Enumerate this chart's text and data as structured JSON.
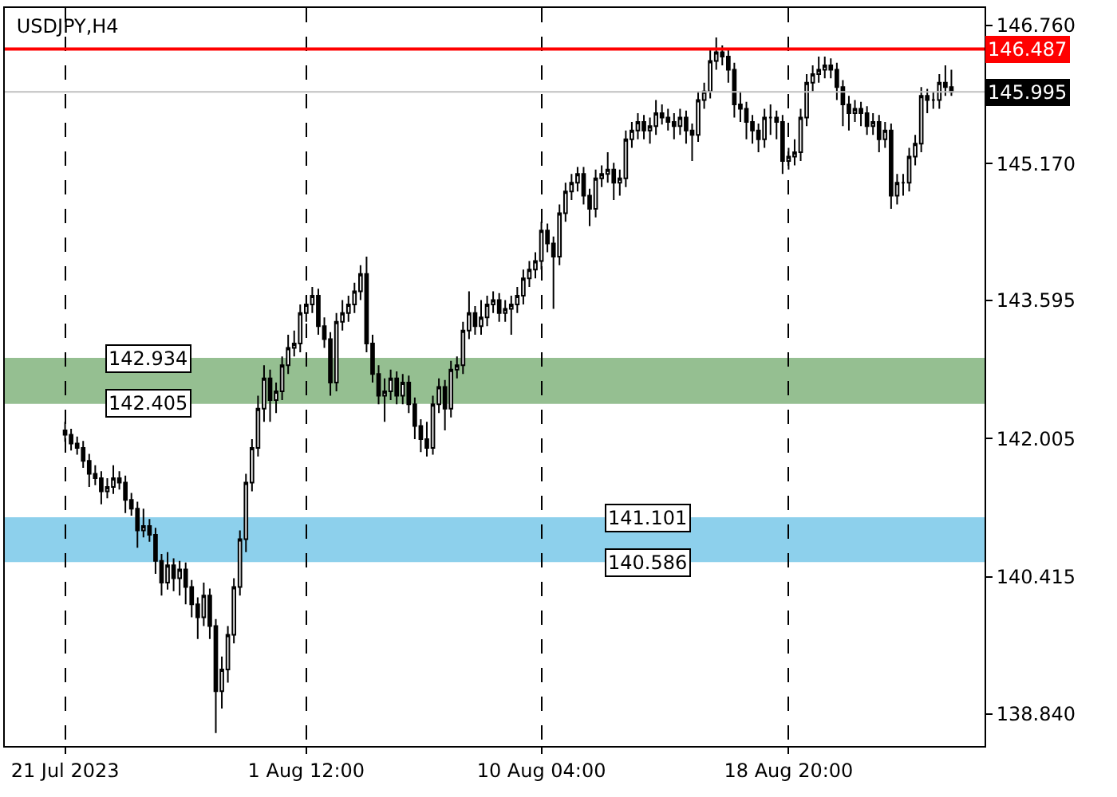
{
  "chart_data": {
    "type": "candlestick",
    "title": "USDJPY,H4",
    "categories": [
      "21 Jul 2023",
      null,
      null,
      null,
      null,
      null,
      null,
      null,
      null,
      null,
      null,
      null,
      null,
      null,
      null,
      null,
      null,
      null,
      null,
      null,
      null,
      null,
      null,
      null,
      null,
      null,
      null,
      null,
      null,
      null,
      null,
      null,
      null,
      null,
      null,
      null,
      null,
      null,
      null,
      null,
      "1 Aug 12:00",
      null,
      null,
      null,
      null,
      null,
      null,
      null,
      null,
      null,
      null,
      null,
      null,
      null,
      null,
      null,
      null,
      null,
      null,
      null,
      null,
      null,
      null,
      null,
      null,
      null,
      null,
      null,
      null,
      null,
      null,
      null,
      null,
      null,
      null,
      null,
      null,
      null,
      null,
      "10 Aug 04:00",
      null,
      null,
      null,
      null,
      null,
      null,
      null,
      null,
      null,
      null,
      null,
      null,
      null,
      null,
      null,
      null,
      null,
      null,
      null,
      null,
      null,
      null,
      null,
      null,
      null,
      null,
      null,
      null,
      null,
      null,
      null,
      null,
      null,
      null,
      null,
      null,
      null,
      null,
      null,
      null,
      "18 Aug 20:00",
      null,
      null,
      null,
      null,
      null,
      null,
      null,
      null,
      null,
      null,
      null,
      null,
      null,
      null,
      null,
      null,
      null,
      null,
      null,
      null,
      null,
      null,
      null,
      null,
      null,
      null,
      null
    ],
    "ohlc": [
      [
        142.1,
        142.2,
        141.97,
        142.05
      ],
      [
        142.05,
        142.12,
        141.87,
        141.95
      ],
      [
        141.95,
        142.03,
        141.82,
        141.9
      ],
      [
        141.9,
        141.98,
        141.67,
        141.75
      ],
      [
        141.75,
        141.83,
        141.45,
        141.6
      ],
      [
        141.6,
        141.7,
        141.47,
        141.55
      ],
      [
        141.55,
        141.63,
        141.25,
        141.4
      ],
      [
        141.4,
        141.55,
        141.32,
        141.45
      ],
      [
        141.45,
        141.7,
        141.37,
        141.55
      ],
      [
        141.55,
        141.63,
        141.42,
        141.5
      ],
      [
        141.5,
        141.58,
        141.15,
        141.3
      ],
      [
        141.3,
        141.38,
        141.12,
        141.2
      ],
      [
        141.2,
        141.28,
        140.75,
        140.95
      ],
      [
        140.95,
        141.2,
        140.87,
        141.0
      ],
      [
        141.0,
        141.08,
        140.82,
        140.9
      ],
      [
        140.9,
        140.98,
        140.45,
        140.6
      ],
      [
        140.6,
        140.68,
        140.2,
        140.35
      ],
      [
        140.35,
        140.7,
        140.27,
        140.55
      ],
      [
        140.55,
        140.63,
        140.25,
        140.4
      ],
      [
        140.4,
        140.6,
        140.2,
        140.5
      ],
      [
        140.5,
        140.58,
        140.1,
        140.3
      ],
      [
        140.3,
        140.38,
        139.95,
        140.1
      ],
      [
        140.1,
        140.18,
        139.7,
        139.95
      ],
      [
        139.95,
        140.35,
        139.85,
        140.2
      ],
      [
        140.2,
        140.28,
        139.7,
        139.85
      ],
      [
        139.85,
        139.93,
        138.62,
        139.1
      ],
      [
        139.1,
        139.5,
        138.9,
        139.35
      ],
      [
        139.35,
        139.85,
        139.2,
        139.75
      ],
      [
        139.75,
        140.4,
        139.65,
        140.3
      ],
      [
        140.3,
        140.95,
        140.2,
        140.85
      ],
      [
        140.85,
        141.6,
        140.7,
        141.5
      ],
      [
        141.5,
        142.0,
        141.4,
        141.9
      ],
      [
        141.9,
        142.5,
        141.8,
        142.35
      ],
      [
        142.35,
        142.85,
        142.2,
        142.7
      ],
      [
        142.7,
        142.8,
        142.2,
        142.45
      ],
      [
        142.45,
        142.65,
        142.3,
        142.55
      ],
      [
        142.55,
        142.95,
        142.45,
        142.85
      ],
      [
        142.85,
        143.2,
        142.75,
        143.05
      ],
      [
        143.05,
        143.25,
        142.95,
        143.1
      ],
      [
        143.1,
        143.55,
        143.0,
        143.45
      ],
      [
        143.45,
        143.65,
        143.35,
        143.55
      ],
      [
        143.55,
        143.75,
        143.45,
        143.65
      ],
      [
        143.65,
        143.73,
        143.2,
        143.3
      ],
      [
        143.3,
        143.4,
        143.05,
        143.15
      ],
      [
        143.15,
        143.23,
        142.5,
        142.65
      ],
      [
        142.65,
        143.45,
        142.55,
        143.35
      ],
      [
        143.35,
        143.6,
        143.25,
        143.45
      ],
      [
        143.45,
        143.65,
        143.35,
        143.55
      ],
      [
        143.55,
        143.8,
        143.45,
        143.7
      ],
      [
        143.7,
        144.0,
        143.6,
        143.9
      ],
      [
        143.9,
        144.1,
        143.0,
        143.1
      ],
      [
        143.1,
        143.2,
        142.65,
        142.75
      ],
      [
        142.75,
        142.85,
        142.4,
        142.5
      ],
      [
        142.5,
        142.7,
        142.2,
        142.55
      ],
      [
        142.55,
        142.8,
        142.45,
        142.7
      ],
      [
        142.7,
        142.78,
        142.4,
        142.5
      ],
      [
        142.5,
        142.75,
        142.4,
        142.65
      ],
      [
        142.65,
        142.73,
        142.3,
        142.4
      ],
      [
        142.4,
        142.48,
        142.0,
        142.15
      ],
      [
        142.15,
        142.23,
        141.85,
        142.0
      ],
      [
        142.0,
        142.2,
        141.8,
        141.9
      ],
      [
        141.9,
        142.5,
        141.82,
        142.4
      ],
      [
        142.4,
        142.7,
        142.3,
        142.6
      ],
      [
        142.6,
        142.68,
        142.1,
        142.35
      ],
      [
        142.35,
        142.9,
        142.25,
        142.8
      ],
      [
        142.8,
        142.95,
        142.7,
        142.85
      ],
      [
        142.85,
        143.35,
        142.75,
        143.25
      ],
      [
        143.25,
        143.7,
        143.15,
        143.45
      ],
      [
        143.45,
        143.53,
        143.2,
        143.3
      ],
      [
        143.3,
        143.6,
        143.2,
        143.4
      ],
      [
        143.4,
        143.65,
        143.3,
        143.55
      ],
      [
        143.55,
        143.7,
        143.45,
        143.6
      ],
      [
        143.6,
        143.68,
        143.35,
        143.45
      ],
      [
        143.45,
        143.6,
        143.35,
        143.5
      ],
      [
        143.5,
        143.65,
        143.2,
        143.55
      ],
      [
        143.55,
        143.75,
        143.45,
        143.65
      ],
      [
        143.65,
        143.95,
        143.55,
        143.85
      ],
      [
        143.85,
        144.05,
        143.75,
        143.95
      ],
      [
        143.95,
        144.15,
        143.85,
        144.05
      ],
      [
        144.05,
        144.5,
        143.95,
        144.4
      ],
      [
        144.4,
        144.48,
        144.15,
        144.25
      ],
      [
        144.25,
        144.33,
        143.5,
        144.1
      ],
      [
        144.1,
        144.7,
        144.0,
        144.6
      ],
      [
        144.6,
        144.95,
        144.5,
        144.85
      ],
      [
        144.85,
        145.05,
        144.75,
        144.95
      ],
      [
        144.95,
        145.13,
        144.85,
        145.05
      ],
      [
        145.05,
        145.13,
        144.7,
        144.8
      ],
      [
        144.8,
        144.88,
        144.45,
        144.65
      ],
      [
        144.65,
        145.1,
        144.55,
        145.0
      ],
      [
        145.0,
        145.15,
        144.9,
        145.05
      ],
      [
        145.05,
        145.3,
        144.95,
        145.1
      ],
      [
        145.1,
        145.18,
        144.75,
        144.95
      ],
      [
        144.95,
        145.1,
        144.8,
        145.0
      ],
      [
        145.0,
        145.55,
        144.9,
        145.45
      ],
      [
        145.45,
        145.65,
        145.35,
        145.55
      ],
      [
        145.55,
        145.75,
        145.45,
        145.65
      ],
      [
        145.65,
        145.73,
        145.45,
        145.55
      ],
      [
        145.55,
        145.7,
        145.4,
        145.6
      ],
      [
        145.6,
        145.9,
        145.5,
        145.75
      ],
      [
        145.75,
        145.85,
        145.62,
        145.7
      ],
      [
        145.7,
        145.8,
        145.55,
        145.65
      ],
      [
        145.65,
        145.75,
        145.45,
        145.6
      ],
      [
        145.6,
        145.8,
        145.5,
        145.7
      ],
      [
        145.7,
        145.78,
        145.4,
        145.55
      ],
      [
        145.55,
        145.63,
        145.2,
        145.5
      ],
      [
        145.5,
        146.0,
        145.42,
        145.9
      ],
      [
        145.9,
        146.1,
        145.8,
        146.0
      ],
      [
        146.0,
        146.5,
        145.92,
        146.35
      ],
      [
        146.35,
        146.62,
        146.25,
        146.45
      ],
      [
        146.45,
        146.53,
        146.3,
        146.4
      ],
      [
        146.4,
        146.48,
        146.1,
        146.25
      ],
      [
        146.25,
        146.33,
        145.7,
        145.85
      ],
      [
        145.85,
        146.0,
        145.65,
        145.8
      ],
      [
        145.8,
        145.88,
        145.45,
        145.65
      ],
      [
        145.65,
        145.73,
        145.4,
        145.55
      ],
      [
        145.55,
        145.63,
        145.3,
        145.45
      ],
      [
        145.45,
        145.8,
        145.35,
        145.7
      ],
      [
        145.7,
        145.85,
        145.5,
        145.7
      ],
      [
        145.7,
        145.78,
        145.45,
        145.65
      ],
      [
        145.65,
        145.73,
        145.05,
        145.2
      ],
      [
        145.2,
        145.35,
        145.1,
        145.25
      ],
      [
        145.25,
        145.45,
        145.15,
        145.3
      ],
      [
        145.3,
        145.8,
        145.2,
        145.7
      ],
      [
        145.7,
        146.2,
        145.6,
        146.1
      ],
      [
        146.1,
        146.3,
        146.0,
        146.2
      ],
      [
        146.2,
        146.4,
        146.1,
        146.25
      ],
      [
        146.25,
        146.4,
        146.15,
        146.3
      ],
      [
        146.3,
        146.38,
        146.15,
        146.25
      ],
      [
        146.25,
        146.33,
        145.9,
        146.05
      ],
      [
        146.05,
        146.13,
        145.6,
        145.85
      ],
      [
        145.85,
        145.95,
        145.55,
        145.75
      ],
      [
        145.75,
        145.9,
        145.65,
        145.8
      ],
      [
        145.8,
        145.88,
        145.6,
        145.75
      ],
      [
        145.75,
        145.83,
        145.5,
        145.6
      ],
      [
        145.6,
        145.75,
        145.5,
        145.65
      ],
      [
        145.65,
        145.73,
        145.3,
        145.45
      ],
      [
        145.45,
        145.65,
        145.35,
        145.55
      ],
      [
        145.55,
        145.63,
        144.65,
        144.8
      ],
      [
        144.8,
        145.05,
        144.7,
        144.95
      ],
      [
        144.95,
        145.05,
        144.8,
        144.95
      ],
      [
        144.95,
        145.35,
        144.85,
        145.25
      ],
      [
        145.25,
        145.5,
        145.15,
        145.4
      ],
      [
        145.4,
        146.05,
        145.3,
        145.95
      ],
      [
        145.95,
        146.03,
        145.75,
        145.9
      ],
      [
        145.9,
        146.0,
        145.8,
        145.9
      ],
      [
        145.9,
        146.2,
        145.8,
        146.1
      ],
      [
        146.1,
        146.3,
        145.95,
        146.05
      ],
      [
        146.05,
        146.25,
        145.95,
        145.995
      ]
    ],
    "ylim": [
      138.47,
      146.96
    ],
    "yticks": [
      {
        "value": 138.84,
        "label": "138.840"
      },
      140.415,
      142.005,
      143.595,
      {
        "value": 145.17,
        "label": "145.170"
      },
      {
        "value": 146.76,
        "label": "146.760"
      }
    ],
    "ref_lines": [
      {
        "axis": "y",
        "value": 146.487,
        "label": "146.487",
        "color": "#ff0000"
      },
      {
        "axis": "y",
        "value": 145.995,
        "label": "145.995",
        "color": "#c0c0c0"
      }
    ],
    "bands": [
      {
        "axis": "y",
        "from": 142.405,
        "to": 142.934,
        "color": "#8fbc8b"
      },
      {
        "axis": "y",
        "from": 140.586,
        "to": 141.101,
        "color": "#87ceeb"
      }
    ],
    "annotations": [
      {
        "text": "142.934",
        "y": 142.934
      },
      {
        "text": "142.405",
        "y": 142.405
      },
      {
        "text": "141.101",
        "y": 141.101
      },
      {
        "text": "140.586",
        "y": 140.586
      }
    ],
    "grid": "x"
  }
}
